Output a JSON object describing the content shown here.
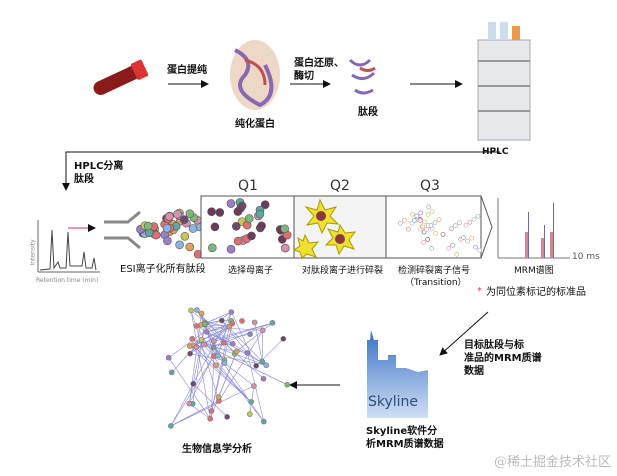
{
  "top_row": {
    "step1_label": "蛋白提纯",
    "purified_protein": "纯化蛋白",
    "step2_label_line1": "蛋白还原、",
    "step2_label_line2": "酶切",
    "peptides": "肽段",
    "hplc": "HPLC"
  },
  "separation": {
    "line1": "HPLC分离",
    "line2": "肽段"
  },
  "chromatogram": {
    "ylabel": "Intensity",
    "xlabel": "Retention time (min)"
  },
  "ms": {
    "esi": "ESI离子化所有肽段",
    "q1": "Q1",
    "q1_label": "选择母离子",
    "q2": "Q2",
    "q2_label": "对肽段离子进行碎裂",
    "q3": "Q3",
    "q3_label_line1": "检测碎裂离子信号",
    "q3_label_line2": "（Transition）",
    "mrm_label": "MRM谱图",
    "mrm_time": "10 ms",
    "legend": "为同位素标记的标准品",
    "legend_color": "#d0406a"
  },
  "skyline": {
    "logo_text": "Skyline",
    "input_line1": "目标肽段与标",
    "input_line2": "准品的MRM质谱",
    "input_line3": "数据",
    "label_line1": "Skyline软件分",
    "label_line2": "析MRM质谱数据"
  },
  "bioinfo": {
    "label": "生物信息学分析"
  },
  "watermark": "@稀土掘金技术社区"
}
